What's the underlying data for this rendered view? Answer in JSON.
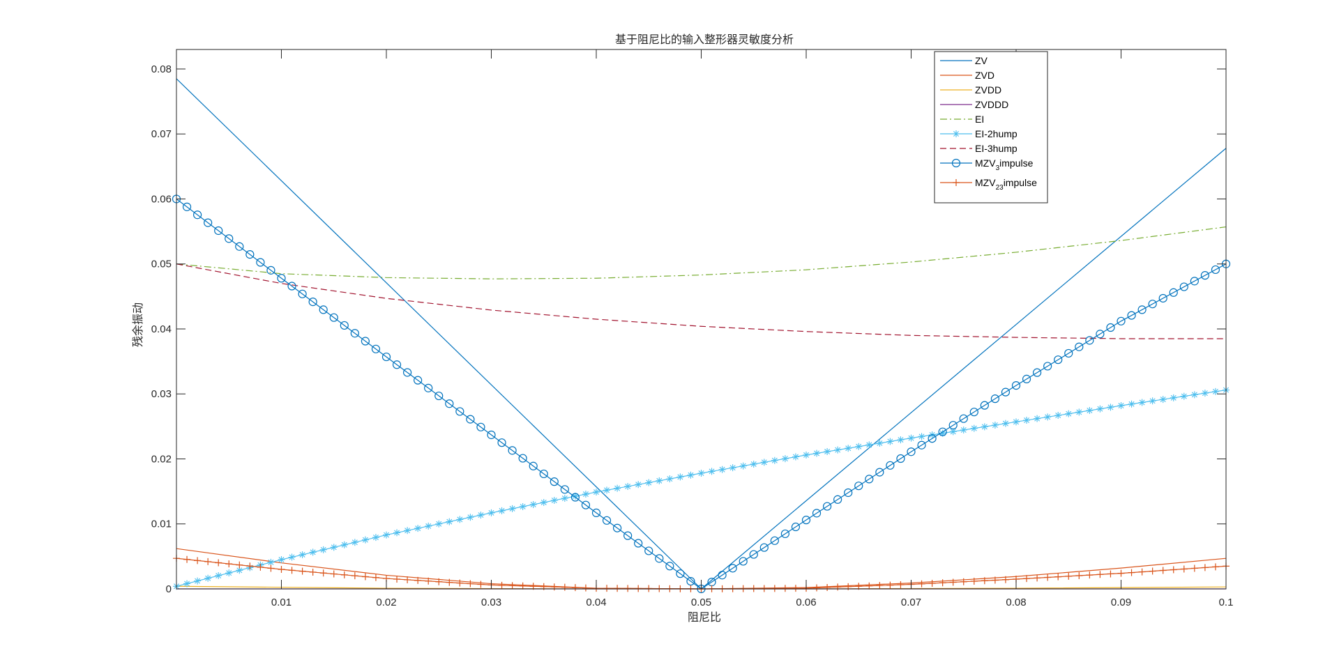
{
  "chart_data": {
    "type": "line",
    "title": "基于阻尼比的输入整形器灵敏度分析",
    "xlabel": "阻尼比",
    "ylabel": "残余振动",
    "xlim": [
      0,
      0.1
    ],
    "ylim": [
      0,
      0.083
    ],
    "xticks": [
      0.01,
      0.02,
      0.03,
      0.04,
      0.05,
      0.06,
      0.07,
      0.08,
      0.09,
      0.1
    ],
    "xtick_labels": [
      "0.01",
      "0.02",
      "0.03",
      "0.04",
      "0.05",
      "0.06",
      "0.07",
      "0.08",
      "0.09",
      "0.1"
    ],
    "yticks": [
      0,
      0.01,
      0.02,
      0.03,
      0.04,
      0.05,
      0.06,
      0.07,
      0.08
    ],
    "ytick_labels": [
      "0",
      "0.01",
      "0.02",
      "0.03",
      "0.04",
      "0.05",
      "0.06",
      "0.07",
      "0.08"
    ],
    "grid": false,
    "legend_position": "top-right",
    "series": [
      {
        "name": "ZV",
        "color": "#0072BD",
        "style": "solid",
        "marker": "none",
        "x": [
          0,
          0.05,
          0.1
        ],
        "y": [
          0.0785,
          0.0,
          0.0678
        ]
      },
      {
        "name": "ZVD",
        "color": "#D95319",
        "style": "solid",
        "marker": "none",
        "x": [
          0,
          0.01,
          0.02,
          0.03,
          0.04,
          0.05,
          0.06,
          0.07,
          0.08,
          0.09,
          0.1
        ],
        "y": [
          0.0062,
          0.004,
          0.0021,
          0.0008,
          0.0001,
          0.0,
          0.0002,
          0.0009,
          0.0019,
          0.0032,
          0.0047
        ]
      },
      {
        "name": "ZVDD",
        "color": "#EDB120",
        "style": "solid",
        "marker": "none",
        "x": [
          0,
          0.02,
          0.04,
          0.05,
          0.06,
          0.08,
          0.1
        ],
        "y": [
          0.0004,
          0.0001,
          0.0,
          0.0,
          0.0,
          0.0001,
          0.0003
        ]
      },
      {
        "name": "ZVDDD",
        "color": "#7E2F8E",
        "style": "solid",
        "marker": "none",
        "x": [
          0,
          0.05,
          0.1
        ],
        "y": [
          0.0,
          0.0,
          0.0
        ]
      },
      {
        "name": "EI",
        "color": "#77AC30",
        "style": "dashdot",
        "marker": "none",
        "x": [
          0,
          0.01,
          0.02,
          0.03,
          0.04,
          0.05,
          0.06,
          0.07,
          0.08,
          0.09,
          0.1
        ],
        "y": [
          0.05,
          0.0485,
          0.0479,
          0.0477,
          0.0478,
          0.0483,
          0.0491,
          0.0503,
          0.0518,
          0.0536,
          0.0557
        ]
      },
      {
        "name": "EI-2hump",
        "color": "#4DBEEE",
        "style": "solid",
        "marker": "star",
        "x": [
          0,
          0.01,
          0.02,
          0.03,
          0.04,
          0.05,
          0.06,
          0.07,
          0.08,
          0.09,
          0.1
        ],
        "y": [
          0.0004,
          0.0045,
          0.0083,
          0.0117,
          0.0149,
          0.0178,
          0.0206,
          0.0232,
          0.0257,
          0.0282,
          0.0306
        ]
      },
      {
        "name": "EI-3hump",
        "color": "#A2142F",
        "style": "dashed",
        "marker": "none",
        "x": [
          0,
          0.01,
          0.02,
          0.03,
          0.04,
          0.05,
          0.06,
          0.07,
          0.08,
          0.09,
          0.1
        ],
        "y": [
          0.05,
          0.047,
          0.0447,
          0.0429,
          0.0415,
          0.0404,
          0.0396,
          0.039,
          0.0387,
          0.0385,
          0.0385
        ]
      },
      {
        "name": "MZV3impulse",
        "name_main": "MZV",
        "name_sub": "3",
        "name_tail": "impulse",
        "color": "#0072BD",
        "style": "solid",
        "marker": "circle",
        "x": [
          0,
          0.01,
          0.02,
          0.03,
          0.04,
          0.05,
          0.06,
          0.07,
          0.08,
          0.09,
          0.1
        ],
        "y": [
          0.06,
          0.0478,
          0.0357,
          0.0237,
          0.0117,
          0.0,
          0.0106,
          0.0211,
          0.0313,
          0.0412,
          0.05
        ]
      },
      {
        "name": "MZV23impulse",
        "name_main": "MZV",
        "name_sub": "23",
        "name_tail": "impulse",
        "color": "#D95319",
        "style": "solid",
        "marker": "plus",
        "x": [
          0,
          0.01,
          0.02,
          0.03,
          0.04,
          0.05,
          0.06,
          0.07,
          0.08,
          0.09,
          0.1
        ],
        "y": [
          0.0047,
          0.003,
          0.0016,
          0.0006,
          0.0001,
          0.0,
          0.0001,
          0.0007,
          0.0015,
          0.0024,
          0.0035
        ]
      }
    ]
  }
}
